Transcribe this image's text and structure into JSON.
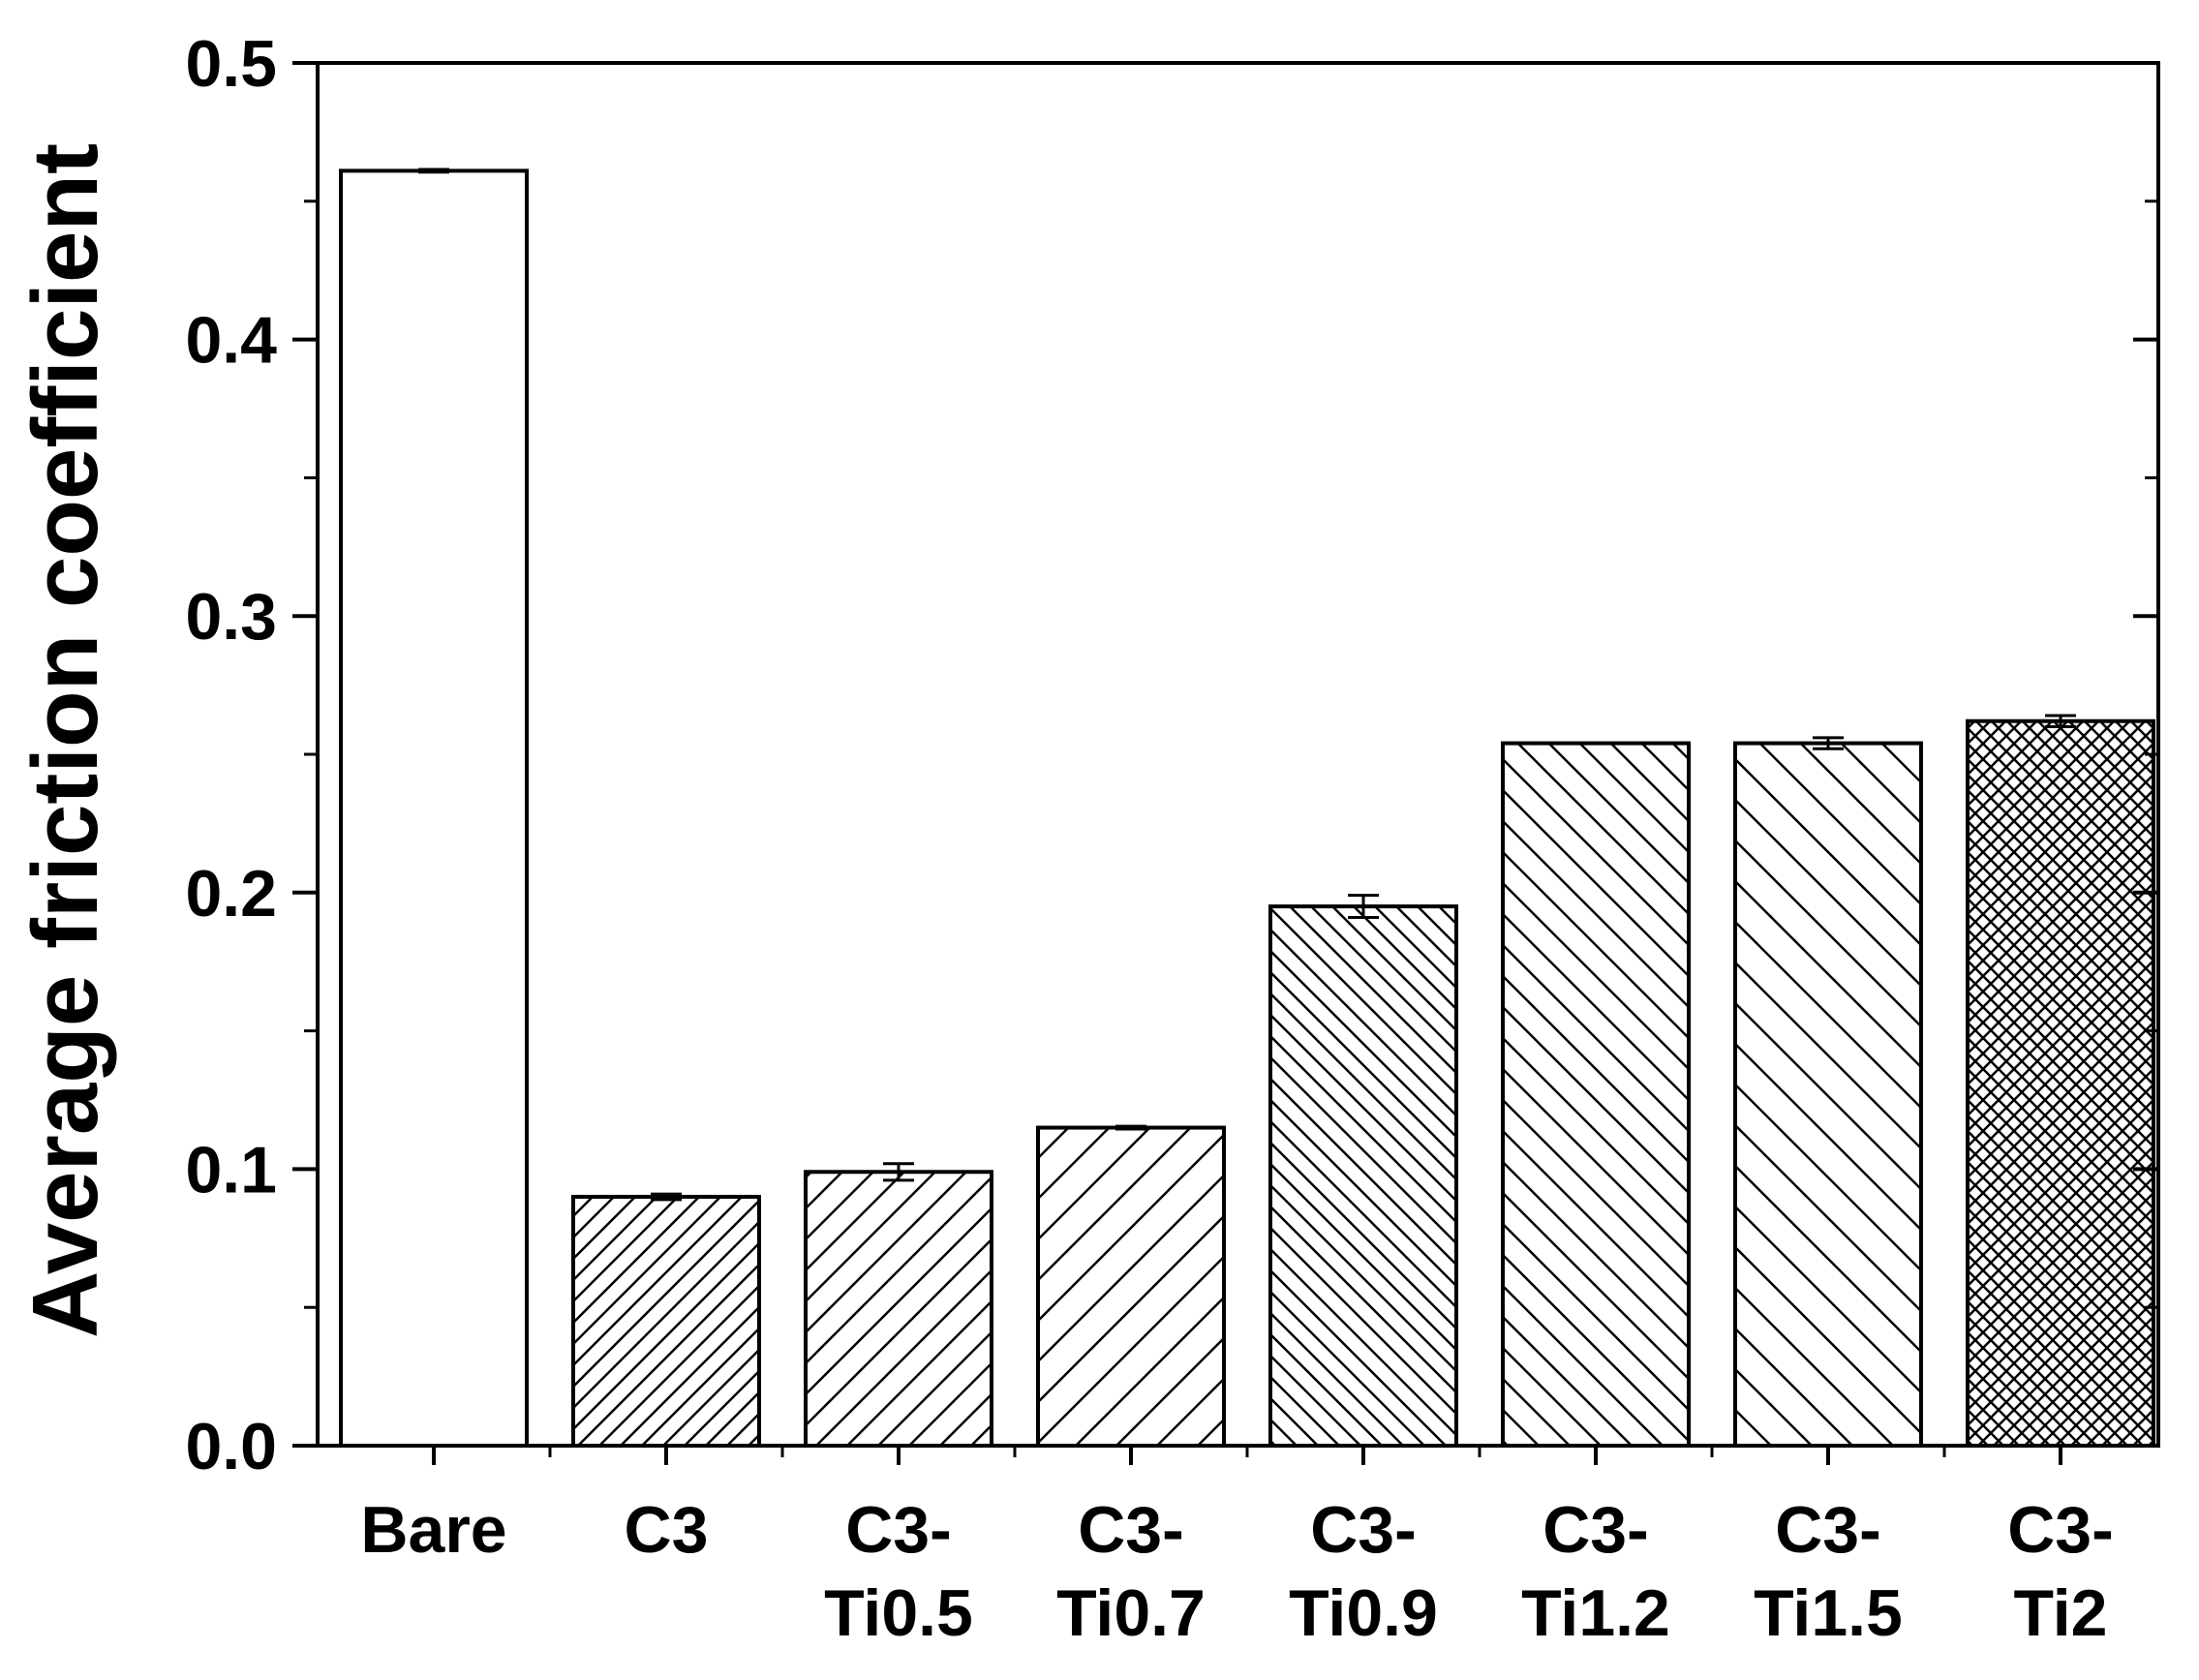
{
  "chart_data": {
    "type": "bar",
    "title": "",
    "xlabel": "",
    "ylabel": "Average friction coefficient",
    "ylim": [
      0,
      0.5
    ],
    "yticks": [
      0.0,
      0.1,
      0.2,
      0.3,
      0.4,
      0.5
    ],
    "ytick_labels": [
      "0.0",
      "0.1",
      "0.2",
      "0.3",
      "0.4",
      "0.5"
    ],
    "grid": false,
    "legend": "none",
    "categories": [
      [
        "Bare"
      ],
      [
        "C3"
      ],
      [
        "C3-",
        "Ti0.5"
      ],
      [
        "C3-",
        "Ti0.7"
      ],
      [
        "C3-",
        "Ti0.9"
      ],
      [
        "C3-",
        "Ti1.2"
      ],
      [
        "C3-",
        "Ti1.5"
      ],
      [
        "C3-",
        "Ti2"
      ]
    ],
    "values": [
      0.461,
      0.09,
      0.099,
      0.115,
      0.195,
      0.254,
      0.254,
      0.262
    ],
    "errors": [
      0.0005,
      0.001,
      0.003,
      0.0005,
      0.004,
      0.0,
      0.002,
      0.002
    ],
    "fill_patterns": [
      "none",
      "dense-diag-up",
      "diag-up",
      "sparse-diag-up",
      "dense-diag-down",
      "diag-down",
      "sparse-diag-down",
      "crosshatch"
    ],
    "colors": {
      "bar_stroke": "#000000",
      "bar_fill": "#ffffff",
      "axis": "#000000"
    }
  }
}
